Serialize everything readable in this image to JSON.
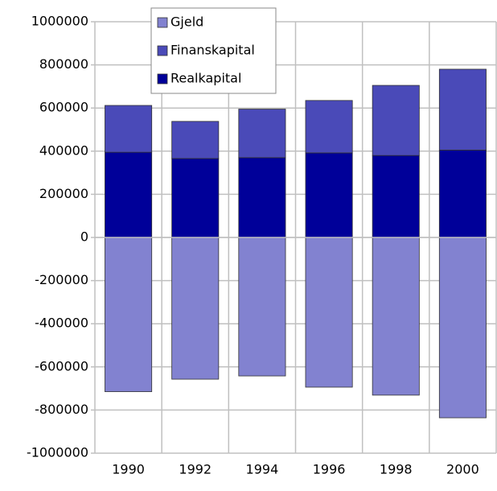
{
  "chart_data": {
    "type": "stacked_bar",
    "categories": [
      "1990",
      "1992",
      "1994",
      "1996",
      "1998",
      "2000"
    ],
    "series": [
      {
        "name": "Gjeld",
        "color": "#8282d0",
        "values": [
          -715000,
          -657000,
          -642000,
          -694000,
          -731000,
          -836000
        ]
      },
      {
        "name": "Finanskapital",
        "color": "#4a4ab8",
        "values": [
          217000,
          172000,
          225000,
          243000,
          325000,
          375000
        ]
      },
      {
        "name": "Realkapital",
        "color": "#000099",
        "values": [
          395000,
          366000,
          370000,
          392000,
          380000,
          405000
        ]
      }
    ],
    "ylim": [
      -1000000,
      1000000
    ],
    "yticks": [
      -1000000,
      -800000,
      -600000,
      -400000,
      -200000,
      0,
      200000,
      400000,
      600000,
      800000,
      1000000
    ],
    "grid": true,
    "legend": "top"
  }
}
